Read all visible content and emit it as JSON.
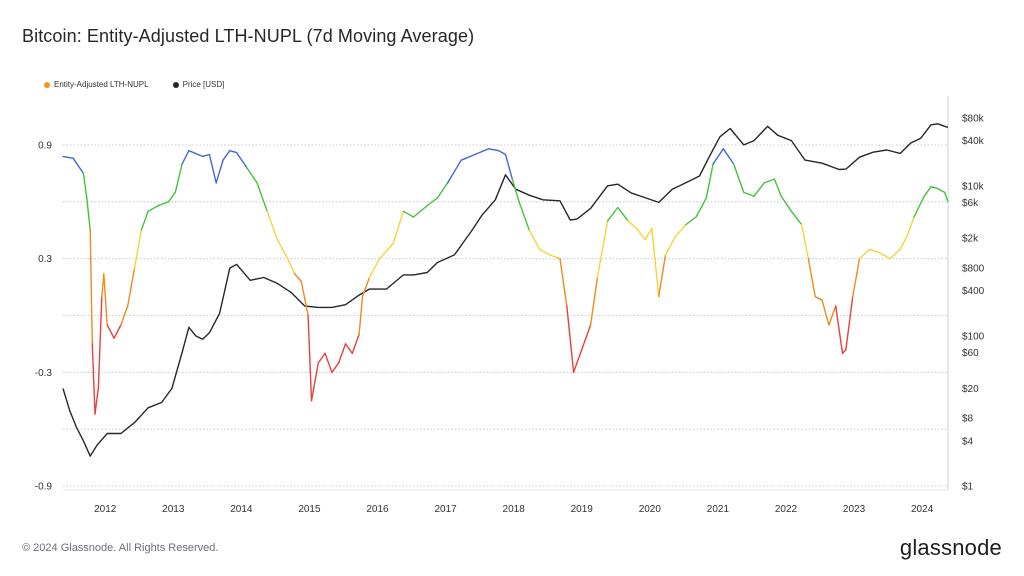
{
  "title": "Bitcoin: Entity-Adjusted LTH-NUPL (7d Moving Average)",
  "footer": {
    "copyright": "© 2024 Glassnode. All Rights Reserved.",
    "brand": "glassnode"
  },
  "chart_data": {
    "type": "line",
    "title": "Bitcoin: Entity-Adjusted LTH-NUPL (7d Moving Average)",
    "legend_position": "top-left",
    "grid": "horizontal-dotted",
    "x_ticks": [
      "2012",
      "2013",
      "2014",
      "2015",
      "2016",
      "2017",
      "2018",
      "2019",
      "2020",
      "2021",
      "2022",
      "2023",
      "2024"
    ],
    "x_range": [
      2011.45,
      2024.45
    ],
    "y_left": {
      "ticks": [
        "0.9",
        "0.3",
        "-0.3",
        "-0.9"
      ],
      "tick_values": [
        0.9,
        0.3,
        -0.3,
        -0.9
      ],
      "range": [
        -0.9,
        0.9
      ]
    },
    "y_right": {
      "ticks": [
        "$80k",
        "$40k",
        "$10k",
        "$6k",
        "$2k",
        "$800",
        "$400",
        "$100",
        "$60",
        "$20",
        "$8",
        "$4",
        "$1"
      ],
      "tick_values": [
        80000,
        40000,
        10000,
        6000,
        2000,
        800,
        400,
        100,
        60,
        20,
        8,
        4,
        1
      ],
      "scale": "log",
      "range": [
        1,
        80000
      ]
    },
    "zone_colors": {
      "capitulation": "#e8403d",
      "hope_fear": "#f08a1a",
      "optimism_anxiety": "#f5d33a",
      "belief_denial": "#44c23a",
      "euphoria_greed": "#4168d8"
    },
    "series": [
      {
        "name": "Entity-Adjusted LTH-NUPL",
        "color": "#f7931a",
        "axis": "left",
        "points": [
          [
            2011.45,
            0.84
          ],
          [
            2011.6,
            0.83
          ],
          [
            2011.75,
            0.75
          ],
          [
            2011.8,
            0.62
          ],
          [
            2011.85,
            0.45
          ],
          [
            2011.88,
            -0.15
          ],
          [
            2011.92,
            -0.52
          ],
          [
            2011.97,
            -0.38
          ],
          [
            2012.02,
            0.1
          ],
          [
            2012.05,
            0.22
          ],
          [
            2012.1,
            -0.05
          ],
          [
            2012.2,
            -0.12
          ],
          [
            2012.3,
            -0.05
          ],
          [
            2012.4,
            0.05
          ],
          [
            2012.5,
            0.25
          ],
          [
            2012.6,
            0.45
          ],
          [
            2012.7,
            0.55
          ],
          [
            2012.85,
            0.58
          ],
          [
            2013.0,
            0.6
          ],
          [
            2013.1,
            0.65
          ],
          [
            2013.2,
            0.8
          ],
          [
            2013.3,
            0.87
          ],
          [
            2013.5,
            0.84
          ],
          [
            2013.6,
            0.85
          ],
          [
            2013.7,
            0.7
          ],
          [
            2013.8,
            0.82
          ],
          [
            2013.9,
            0.87
          ],
          [
            2014.0,
            0.86
          ],
          [
            2014.15,
            0.78
          ],
          [
            2014.3,
            0.7
          ],
          [
            2014.45,
            0.55
          ],
          [
            2014.6,
            0.4
          ],
          [
            2014.75,
            0.3
          ],
          [
            2014.85,
            0.22
          ],
          [
            2014.95,
            0.18
          ],
          [
            2015.05,
            0.0
          ],
          [
            2015.1,
            -0.45
          ],
          [
            2015.2,
            -0.25
          ],
          [
            2015.3,
            -0.2
          ],
          [
            2015.4,
            -0.3
          ],
          [
            2015.5,
            -0.25
          ],
          [
            2015.6,
            -0.15
          ],
          [
            2015.7,
            -0.2
          ],
          [
            2015.8,
            -0.1
          ],
          [
            2015.85,
            0.1
          ],
          [
            2015.95,
            0.2
          ],
          [
            2016.1,
            0.3
          ],
          [
            2016.3,
            0.38
          ],
          [
            2016.45,
            0.55
          ],
          [
            2016.6,
            0.52
          ],
          [
            2016.8,
            0.58
          ],
          [
            2016.95,
            0.62
          ],
          [
            2017.1,
            0.7
          ],
          [
            2017.3,
            0.82
          ],
          [
            2017.5,
            0.85
          ],
          [
            2017.7,
            0.88
          ],
          [
            2017.85,
            0.87
          ],
          [
            2017.95,
            0.85
          ],
          [
            2018.05,
            0.72
          ],
          [
            2018.15,
            0.6
          ],
          [
            2018.3,
            0.45
          ],
          [
            2018.45,
            0.35
          ],
          [
            2018.6,
            0.32
          ],
          [
            2018.75,
            0.3
          ],
          [
            2018.85,
            0.05
          ],
          [
            2018.95,
            -0.3
          ],
          [
            2019.05,
            -0.2
          ],
          [
            2019.2,
            -0.05
          ],
          [
            2019.3,
            0.2
          ],
          [
            2019.45,
            0.5
          ],
          [
            2019.6,
            0.57
          ],
          [
            2019.75,
            0.5
          ],
          [
            2019.9,
            0.45
          ],
          [
            2020.0,
            0.4
          ],
          [
            2020.1,
            0.46
          ],
          [
            2020.2,
            0.1
          ],
          [
            2020.3,
            0.32
          ],
          [
            2020.45,
            0.42
          ],
          [
            2020.6,
            0.48
          ],
          [
            2020.75,
            0.52
          ],
          [
            2020.9,
            0.62
          ],
          [
            2021.0,
            0.8
          ],
          [
            2021.15,
            0.88
          ],
          [
            2021.3,
            0.8
          ],
          [
            2021.45,
            0.65
          ],
          [
            2021.6,
            0.63
          ],
          [
            2021.75,
            0.7
          ],
          [
            2021.9,
            0.72
          ],
          [
            2022.0,
            0.63
          ],
          [
            2022.15,
            0.55
          ],
          [
            2022.3,
            0.48
          ],
          [
            2022.4,
            0.3
          ],
          [
            2022.5,
            0.1
          ],
          [
            2022.6,
            0.08
          ],
          [
            2022.7,
            -0.05
          ],
          [
            2022.8,
            0.05
          ],
          [
            2022.9,
            -0.2
          ],
          [
            2022.95,
            -0.18
          ],
          [
            2023.05,
            0.1
          ],
          [
            2023.15,
            0.3
          ],
          [
            2023.3,
            0.35
          ],
          [
            2023.45,
            0.33
          ],
          [
            2023.6,
            0.3
          ],
          [
            2023.75,
            0.35
          ],
          [
            2023.85,
            0.42
          ],
          [
            2023.95,
            0.52
          ],
          [
            2024.1,
            0.63
          ],
          [
            2024.2,
            0.68
          ],
          [
            2024.3,
            0.67
          ],
          [
            2024.4,
            0.65
          ],
          [
            2024.45,
            0.6
          ]
        ]
      },
      {
        "name": "Price [USD]",
        "color": "#26272b",
        "axis": "right",
        "points": [
          [
            2011.45,
            20
          ],
          [
            2011.55,
            10
          ],
          [
            2011.65,
            6
          ],
          [
            2011.75,
            4
          ],
          [
            2011.85,
            2.5
          ],
          [
            2011.95,
            3.5
          ],
          [
            2012.1,
            5
          ],
          [
            2012.3,
            5
          ],
          [
            2012.5,
            7
          ],
          [
            2012.7,
            11
          ],
          [
            2012.9,
            13
          ],
          [
            2013.05,
            20
          ],
          [
            2013.2,
            60
          ],
          [
            2013.3,
            130
          ],
          [
            2013.4,
            100
          ],
          [
            2013.5,
            90
          ],
          [
            2013.6,
            110
          ],
          [
            2013.75,
            200
          ],
          [
            2013.9,
            800
          ],
          [
            2014.0,
            900
          ],
          [
            2014.2,
            550
          ],
          [
            2014.4,
            600
          ],
          [
            2014.6,
            500
          ],
          [
            2014.8,
            380
          ],
          [
            2015.0,
            250
          ],
          [
            2015.2,
            240
          ],
          [
            2015.4,
            240
          ],
          [
            2015.6,
            260
          ],
          [
            2015.8,
            350
          ],
          [
            2015.95,
            420
          ],
          [
            2016.2,
            420
          ],
          [
            2016.45,
            650
          ],
          [
            2016.6,
            650
          ],
          [
            2016.8,
            700
          ],
          [
            2016.95,
            950
          ],
          [
            2017.2,
            1200
          ],
          [
            2017.45,
            2500
          ],
          [
            2017.6,
            4000
          ],
          [
            2017.8,
            6500
          ],
          [
            2017.95,
            14000
          ],
          [
            2018.1,
            9000
          ],
          [
            2018.3,
            7500
          ],
          [
            2018.5,
            6500
          ],
          [
            2018.75,
            6300
          ],
          [
            2018.9,
            3500
          ],
          [
            2019.0,
            3600
          ],
          [
            2019.2,
            5000
          ],
          [
            2019.45,
            10000
          ],
          [
            2019.6,
            10500
          ],
          [
            2019.8,
            8000
          ],
          [
            2019.95,
            7200
          ],
          [
            2020.2,
            6000
          ],
          [
            2020.4,
            9000
          ],
          [
            2020.6,
            11000
          ],
          [
            2020.8,
            13500
          ],
          [
            2020.95,
            25000
          ],
          [
            2021.1,
            45000
          ],
          [
            2021.25,
            58000
          ],
          [
            2021.45,
            35000
          ],
          [
            2021.6,
            40000
          ],
          [
            2021.8,
            62000
          ],
          [
            2021.95,
            47000
          ],
          [
            2022.15,
            40000
          ],
          [
            2022.35,
            22000
          ],
          [
            2022.6,
            20000
          ],
          [
            2022.85,
            16500
          ],
          [
            2022.95,
            16700
          ],
          [
            2023.15,
            24000
          ],
          [
            2023.35,
            28000
          ],
          [
            2023.55,
            30000
          ],
          [
            2023.75,
            27000
          ],
          [
            2023.9,
            37000
          ],
          [
            2024.05,
            43000
          ],
          [
            2024.2,
            65000
          ],
          [
            2024.3,
            67000
          ],
          [
            2024.4,
            62000
          ],
          [
            2024.45,
            60000
          ]
        ]
      }
    ]
  }
}
